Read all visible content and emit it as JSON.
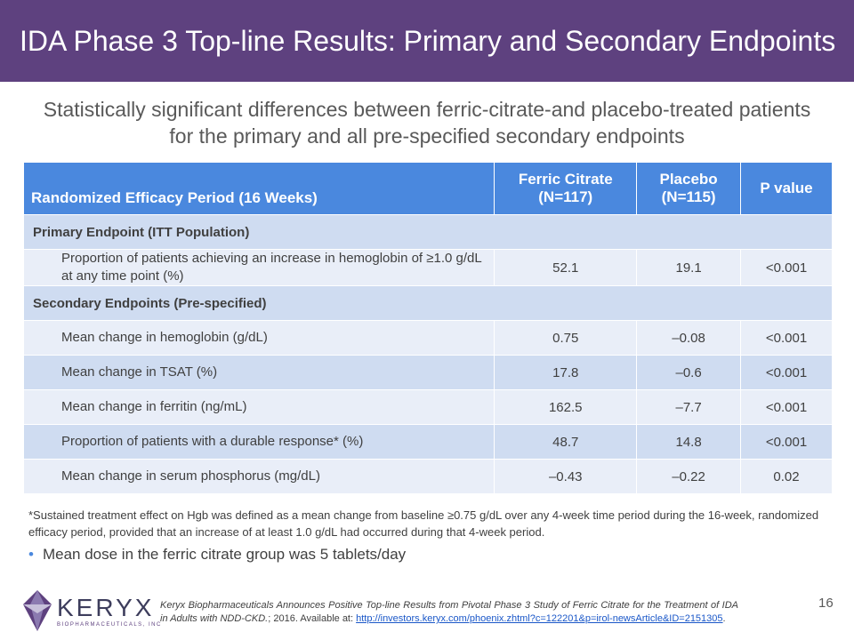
{
  "title": "IDA Phase 3 Top-line Results: Primary and Secondary Endpoints",
  "subtitle": "Statistically significant differences between ferric-citrate-and placebo-treated patients for the primary and all pre-specified secondary endpoints",
  "table": {
    "headers": [
      "Randomized Efficacy Period (16 Weeks)",
      "Ferric Citrate (N=117)",
      "Placebo (N=115)",
      "P value"
    ],
    "primary_section": "Primary Endpoint (ITT Population)",
    "primary_rows": [
      {
        "label": "Proportion of patients achieving an increase in hemoglobin of ≥1.0 g/dL at any time point (%)",
        "ferric": "52.1",
        "placebo": "19.1",
        "p": "<0.001"
      }
    ],
    "secondary_section": "Secondary Endpoints (Pre-specified)",
    "secondary_rows": [
      {
        "label": "Mean change in hemoglobin (g/dL)",
        "ferric": "0.75",
        "placebo": "–0.08",
        "p": "<0.001"
      },
      {
        "label": "Mean change in TSAT (%)",
        "ferric": "17.8",
        "placebo": "–0.6",
        "p": "<0.001"
      },
      {
        "label": "Mean change in ferritin (ng/mL)",
        "ferric": "162.5",
        "placebo": "–7.7",
        "p": "<0.001"
      },
      {
        "label": "Proportion of patients with a durable response* (%)",
        "ferric": "48.7",
        "placebo": "14.8",
        "p": "<0.001"
      },
      {
        "label": "Mean change in serum phosphorus (mg/dL)",
        "ferric": "–0.43",
        "placebo": "–0.22",
        "p": "0.02"
      }
    ]
  },
  "footnote": "*Sustained treatment effect on Hgb was defined as a mean change from baseline ≥0.75 g/dL over any 4-week time period during the 16-week, randomized efficacy period, provided that an increase of at least 1.0 g/dL had occurred during that 4-week period.",
  "bullet": "Mean dose in the ferric citrate group was 5 tablets/day",
  "logo": {
    "name": "KERYX",
    "sub": "BIOPHARMACEUTICALS, INC"
  },
  "reference": {
    "italic": "Keryx Biopharmaceuticals Announces Positive Top-line Results from Pivotal Phase 3 Study of Ferric Citrate for the Treatment of IDA in Adults with NDD-CKD.",
    "plain": "; 2016. Available at: ",
    "link": "http://investors.keryx.com/phoenix.zhtml?c=122201&p=irol-newsArticle&ID=2151305",
    "end": "."
  },
  "page_number": "16",
  "colors": {
    "title_bg": "#5e417f",
    "header_bg": "#4a88de",
    "row_dark": "#cfdcf1",
    "row_light": "#e9eef8"
  }
}
